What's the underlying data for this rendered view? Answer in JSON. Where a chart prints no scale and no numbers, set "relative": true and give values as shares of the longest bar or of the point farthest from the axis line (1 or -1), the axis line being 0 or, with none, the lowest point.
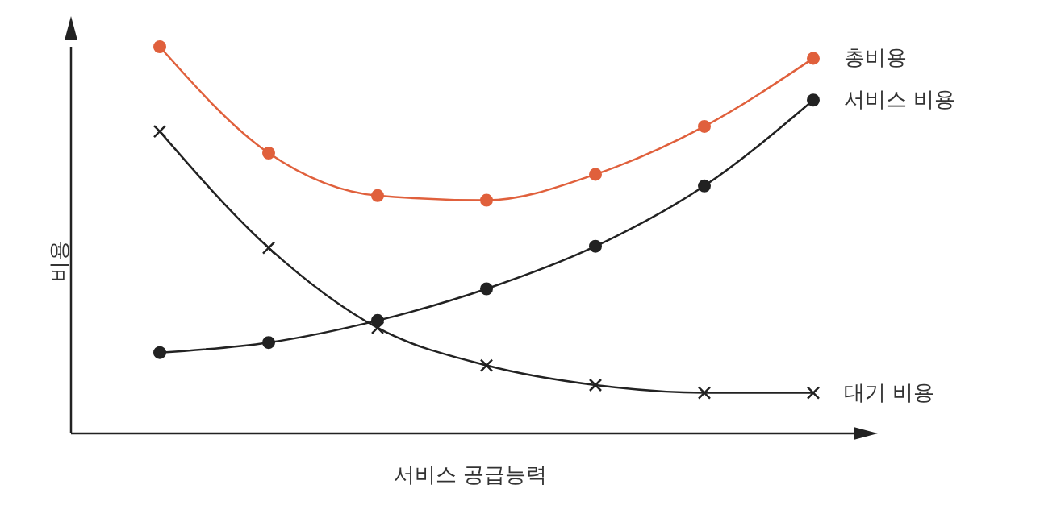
{
  "chart_data": {
    "type": "line",
    "relative": true,
    "xlabel": "서비스 공급능력",
    "ylabel": "비용",
    "categories": [
      null,
      null,
      null,
      null,
      null,
      null,
      null
    ],
    "grid": false,
    "legend": false,
    "line_style": "solid",
    "series": [
      {
        "name": "총비용",
        "color": "#e0603c",
        "marker": "circle",
        "values": [
          1,
          0.725,
          0.615,
          0.603,
          0.67,
          0.794,
          0.97
        ]
      },
      {
        "name": "서비스 비용",
        "color": "#222222",
        "marker": "circle",
        "values": [
          0.209,
          0.235,
          0.292,
          0.374,
          0.484,
          0.64,
          0.862
        ]
      },
      {
        "name": "대기 비용",
        "color": "#222222",
        "marker": "cross",
        "values": [
          0.781,
          0.48,
          0.273,
          0.176,
          0.125,
          0.105,
          0.105
        ]
      }
    ]
  }
}
